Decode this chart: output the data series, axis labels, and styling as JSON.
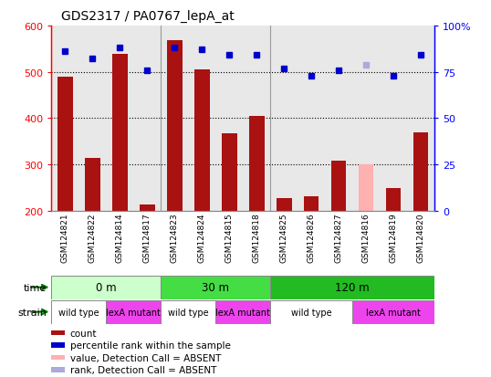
{
  "title": "GDS2317 / PA0767_lepA_at",
  "samples": [
    "GSM124821",
    "GSM124822",
    "GSM124814",
    "GSM124817",
    "GSM124823",
    "GSM124824",
    "GSM124815",
    "GSM124818",
    "GSM124825",
    "GSM124826",
    "GSM124827",
    "GSM124816",
    "GSM124819",
    "GSM124820"
  ],
  "counts": [
    490,
    315,
    538,
    213,
    568,
    505,
    368,
    405,
    228,
    231,
    308,
    300,
    248,
    369
  ],
  "percentile_ranks": [
    86,
    82,
    88,
    76,
    88,
    87,
    84,
    84,
    77,
    73,
    76,
    79,
    73,
    84
  ],
  "absent": [
    false,
    false,
    false,
    false,
    false,
    false,
    false,
    false,
    false,
    false,
    false,
    true,
    false,
    false
  ],
  "absent_rank": [
    false,
    false,
    false,
    false,
    false,
    false,
    false,
    false,
    false,
    false,
    false,
    true,
    false,
    false
  ],
  "ylim_left": [
    200,
    600
  ],
  "ylim_right": [
    0,
    100
  ],
  "yticks_left": [
    200,
    300,
    400,
    500,
    600
  ],
  "yticks_right": [
    0,
    25,
    50,
    75,
    100
  ],
  "bar_color": "#AA1111",
  "absent_bar_color": "#FFB0B0",
  "rank_color": "#0000CC",
  "absent_rank_color": "#AAAADD",
  "time_groups": [
    {
      "label": "0 m",
      "start": 0,
      "end": 4,
      "color": "#CCFFCC"
    },
    {
      "label": "30 m",
      "start": 4,
      "end": 8,
      "color": "#44DD44"
    },
    {
      "label": "120 m",
      "start": 8,
      "end": 14,
      "color": "#22BB22"
    }
  ],
  "strain_groups": [
    {
      "label": "wild type",
      "start": 0,
      "end": 2,
      "color": "#FFFFFF"
    },
    {
      "label": "lexA mutant",
      "start": 2,
      "end": 4,
      "color": "#EE44EE"
    },
    {
      "label": "wild type",
      "start": 4,
      "end": 6,
      "color": "#FFFFFF"
    },
    {
      "label": "lexA mutant",
      "start": 6,
      "end": 8,
      "color": "#EE44EE"
    },
    {
      "label": "wild type",
      "start": 8,
      "end": 11,
      "color": "#FFFFFF"
    },
    {
      "label": "lexA mutant",
      "start": 11,
      "end": 14,
      "color": "#EE44EE"
    }
  ]
}
